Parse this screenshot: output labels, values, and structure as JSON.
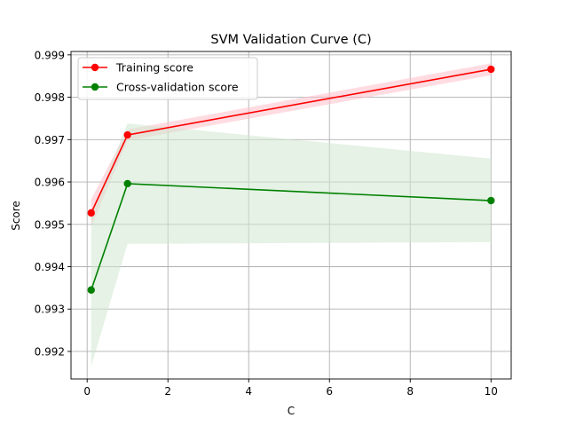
{
  "chart_data": {
    "type": "line",
    "title": "SVM Validation Curve (C)",
    "xlabel": "C",
    "ylabel": "Score",
    "xlim": [
      -0.4,
      10.5
    ],
    "ylim": [
      0.99135,
      0.99908
    ],
    "xticks": [
      0,
      2,
      4,
      6,
      8,
      10
    ],
    "yticks": [
      0.992,
      0.993,
      0.994,
      0.995,
      0.996,
      0.997,
      0.998,
      0.999
    ],
    "grid": true,
    "legend_position": "top-left",
    "x": [
      0.1,
      1,
      10
    ],
    "series": [
      {
        "name": "Training score",
        "color": "#ff0000",
        "band_color": "#ffc0cb",
        "values": [
          0.99527,
          0.99711,
          0.99866
        ],
        "band_lower": [
          0.99495,
          0.99698,
          0.99852
        ],
        "band_upper": [
          0.99559,
          0.99724,
          0.9988
        ]
      },
      {
        "name": "Cross-validation score",
        "color": "#008000",
        "band_color": "#cfe8cf",
        "values": [
          0.99345,
          0.99596,
          0.99556
        ],
        "band_lower": [
          0.99165,
          0.99454,
          0.99458
        ],
        "band_upper": [
          0.99525,
          0.99738,
          0.99655
        ]
      }
    ]
  }
}
